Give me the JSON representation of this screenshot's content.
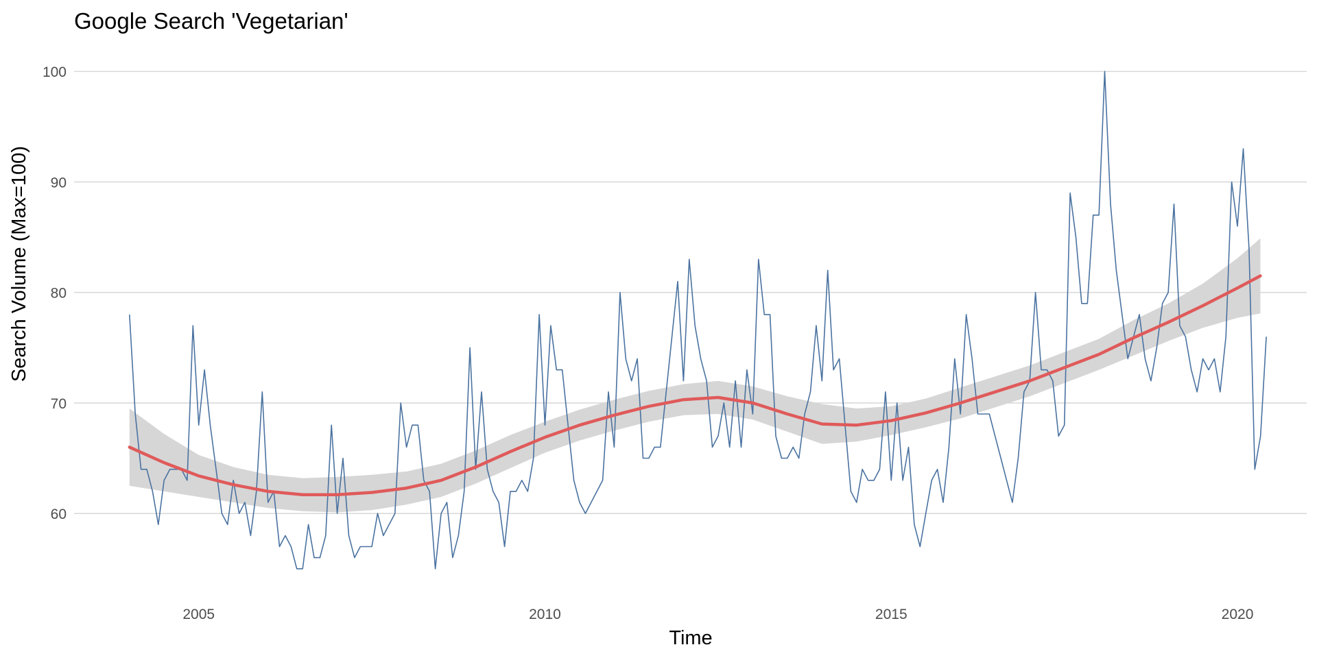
{
  "chart_data": {
    "type": "line",
    "title": "Google Search 'Vegetarian'",
    "xlabel": "Time",
    "ylabel": "Search Volume (Max=100)",
    "xlim": [
      2003.2,
      2021.0
    ],
    "ylim": [
      53,
      102
    ],
    "x_ticks": [
      2005,
      2010,
      2015,
      2020
    ],
    "y_ticks": [
      60,
      70,
      80,
      90,
      100
    ],
    "grid": "horizontal only",
    "colors": {
      "series": "#4a72a0",
      "smooth": "#e05a5a",
      "band": "#d6d6d6",
      "grid": "#d9d9d9"
    },
    "series": [
      {
        "x_start": 2004.0,
        "x_step_months": 1,
        "values": [
          78,
          69,
          64,
          64,
          62,
          59,
          63,
          64,
          64,
          64,
          63,
          77,
          68,
          73,
          68,
          64,
          60,
          59,
          63,
          60,
          61,
          58,
          62,
          71,
          61,
          62,
          57,
          58,
          57,
          55,
          55,
          59,
          56,
          56,
          58,
          68,
          60,
          65,
          58,
          56,
          57,
          57,
          57,
          60,
          58,
          59,
          60,
          70,
          66,
          68,
          68,
          63,
          62,
          55,
          60,
          61,
          56,
          58,
          62,
          75,
          64,
          71,
          64,
          62,
          61,
          57,
          62,
          62,
          63,
          62,
          65,
          78,
          68,
          77,
          73,
          73,
          68,
          63,
          61,
          60,
          61,
          62,
          63,
          71,
          66,
          80,
          74,
          72,
          74,
          65,
          65,
          66,
          66,
          71,
          76,
          81,
          72,
          83,
          77,
          74,
          72,
          66,
          67,
          70,
          66,
          72,
          66,
          73,
          69,
          83,
          78,
          78,
          67,
          65,
          65,
          66,
          65,
          69,
          71,
          77,
          72,
          82,
          73,
          74,
          68,
          62,
          61,
          64,
          63,
          63,
          64,
          71,
          63,
          70,
          63,
          66,
          59,
          57,
          60,
          63,
          64,
          61,
          66,
          74,
          69,
          78,
          74,
          69,
          69,
          69,
          67,
          65,
          63,
          61,
          65,
          71,
          72,
          80,
          73,
          73,
          72,
          67,
          68,
          89,
          85,
          79,
          79,
          87,
          87,
          100,
          88,
          82,
          78,
          74,
          76,
          78,
          74,
          72,
          75,
          79,
          80,
          88,
          77,
          76,
          73,
          71,
          74,
          73,
          74,
          71,
          76,
          90,
          86,
          93,
          84,
          64,
          67,
          76
        ]
      }
    ],
    "smooth": {
      "x": [
        2004.0,
        2004.5,
        2005.0,
        2005.5,
        2006.0,
        2006.5,
        2007.0,
        2007.5,
        2008.0,
        2008.5,
        2009.0,
        2009.5,
        2010.0,
        2010.5,
        2011.0,
        2011.5,
        2012.0,
        2012.5,
        2013.0,
        2013.5,
        2014.0,
        2014.5,
        2015.0,
        2015.5,
        2016.0,
        2016.5,
        2017.0,
        2017.5,
        2018.0,
        2018.5,
        2019.0,
        2019.5,
        2020.0,
        2020.33
      ],
      "fit": [
        66.0,
        64.6,
        63.4,
        62.6,
        62.0,
        61.7,
        61.7,
        61.9,
        62.3,
        63.0,
        64.2,
        65.6,
        66.9,
        68.0,
        68.9,
        69.7,
        70.3,
        70.5,
        70.0,
        69.0,
        68.1,
        68.0,
        68.4,
        69.1,
        70.0,
        71.0,
        72.0,
        73.2,
        74.4,
        75.9,
        77.3,
        78.8,
        80.4,
        81.5
      ],
      "lower": [
        62.5,
        62.0,
        61.5,
        61.0,
        60.5,
        60.2,
        60.1,
        60.3,
        60.8,
        61.5,
        62.7,
        64.1,
        65.5,
        66.6,
        67.5,
        68.3,
        68.9,
        69.0,
        68.5,
        67.4,
        66.3,
        66.5,
        67.1,
        67.8,
        68.6,
        69.6,
        70.6,
        71.8,
        73.0,
        74.3,
        75.6,
        76.8,
        77.7,
        78.1
      ],
      "upper": [
        69.5,
        67.2,
        65.3,
        64.2,
        63.5,
        63.2,
        63.3,
        63.5,
        63.8,
        64.5,
        65.7,
        67.1,
        68.3,
        69.4,
        70.3,
        71.1,
        71.7,
        72.0,
        71.5,
        70.6,
        69.9,
        69.5,
        69.7,
        70.4,
        71.4,
        72.4,
        73.4,
        74.6,
        75.8,
        77.5,
        79.0,
        80.8,
        83.1,
        84.9
      ]
    }
  }
}
